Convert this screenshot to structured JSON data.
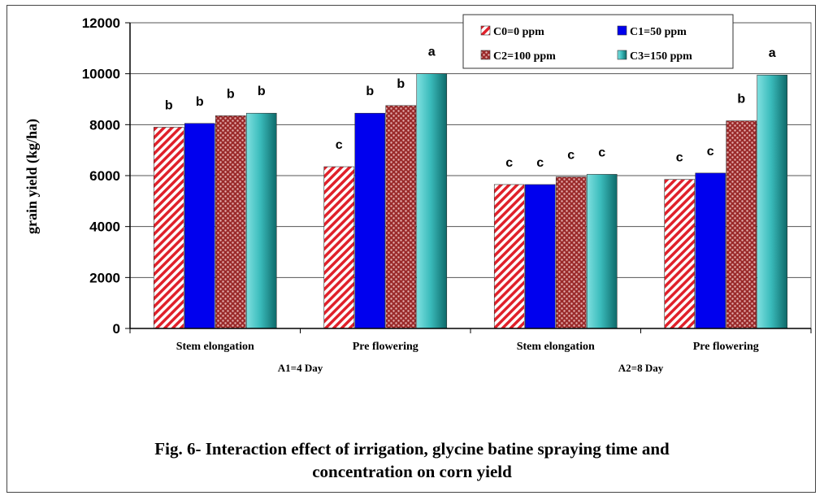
{
  "chart_data": {
    "type": "bar",
    "ylabel": "grain yield (kg/ha)",
    "xlabel": "",
    "ylim": [
      0,
      12000
    ],
    "yticks": [
      "0",
      "2000",
      "4000",
      "6000",
      "8000",
      "10000",
      "12000"
    ],
    "grid": true,
    "legend_position": "top-right",
    "groups": [
      {
        "label": "A1=4 Day",
        "categories": [
          "Stem elongation",
          "Pre flowering"
        ]
      },
      {
        "label": "A2=8 Day",
        "categories": [
          "Stem elongation",
          "Pre flowering"
        ]
      }
    ],
    "categories": [
      "Stem elongation",
      "Pre flowering",
      "Stem elongation",
      "Pre flowering"
    ],
    "series": [
      {
        "name": "C0=0 ppm",
        "values": [
          7900,
          6350,
          5650,
          5850
        ],
        "letters": [
          "b",
          "c",
          "c",
          "c"
        ],
        "color": "#e0202a",
        "pattern": "diagonal"
      },
      {
        "name": "C1=50 ppm",
        "values": [
          8050,
          8450,
          5650,
          6100
        ],
        "letters": [
          "b",
          "b",
          "c",
          "c"
        ],
        "color": "#0000ee",
        "pattern": "solid"
      },
      {
        "name": "C2=100 ppm",
        "values": [
          8350,
          8750,
          5950,
          8150
        ],
        "letters": [
          "b",
          "b",
          "c",
          "b"
        ],
        "color": "#b03a3a",
        "pattern": "dots"
      },
      {
        "name": "C3=150 ppm",
        "values": [
          8450,
          10000,
          6050,
          9950
        ],
        "letters": [
          "b",
          "a",
          "c",
          "a"
        ],
        "color": "#2aa8a8",
        "pattern": "cylinder"
      }
    ]
  },
  "caption": {
    "line1": "Fig. 6- Interaction effect of irrigation, glycine batine spraying time and",
    "line2": "concentration on corn yield"
  }
}
